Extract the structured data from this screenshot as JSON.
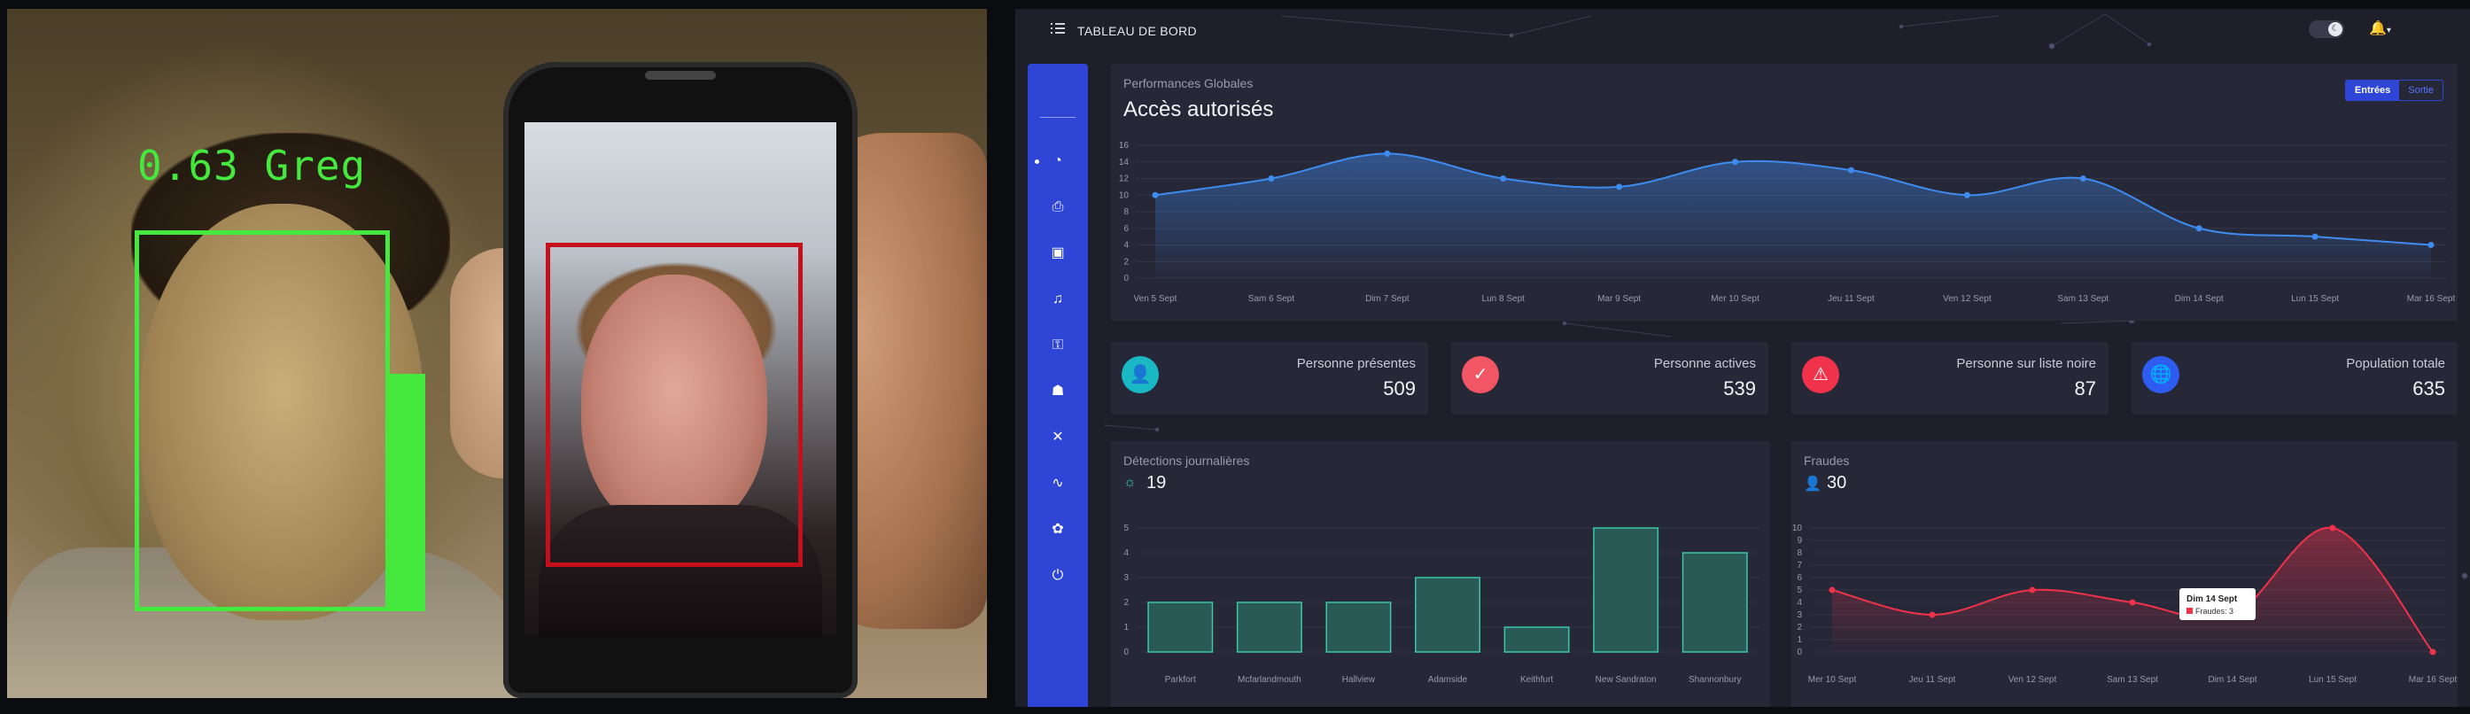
{
  "camera": {
    "overlay_label": "0.63 Greg"
  },
  "topbar": {
    "title": "TABLEAU DE BORD",
    "menu_icon": "list-icon",
    "theme_icon": "moon-icon",
    "notif_icon": "bell-icon"
  },
  "sidebar": {
    "items": [
      "dashboard-pie-icon",
      "camera-icon",
      "id-card-icon",
      "bell-icon",
      "key-icon",
      "users-icon",
      "tools-icon",
      "pulse-icon",
      "puzzle-icon",
      "power-icon"
    ]
  },
  "main_card": {
    "subtitle": "Performances Globales",
    "title": "Accès autorisés",
    "toggle": {
      "active": "Entrées",
      "inactive": "Sortie"
    }
  },
  "stats": [
    {
      "label": "Personne présentes",
      "value": "509",
      "icon": "user-icon",
      "color": "#1ab7c4"
    },
    {
      "label": "Personne actives",
      "value": "539",
      "icon": "check-icon",
      "color": "#f25563"
    },
    {
      "label": "Personne sur liste noire",
      "value": "87",
      "icon": "alert-icon",
      "color": "#f0324a"
    },
    {
      "label": "Population totale",
      "value": "635",
      "icon": "globe-icon",
      "color": "#2e5bf0"
    }
  ],
  "detections": {
    "subtitle": "Détections journalières",
    "count": "19"
  },
  "frauds": {
    "subtitle": "Fraudes",
    "count": "30",
    "tooltip_title": "Dim 14 Sept",
    "tooltip_line": "Fraudes: 3"
  },
  "chart_data": [
    {
      "type": "area",
      "categories": [
        "Ven 5 Sept",
        "Sam 6 Sept",
        "Dim 7 Sept",
        "Lun 8 Sept",
        "Mar 9 Sept",
        "Mer 10 Sept",
        "Jeu 11 Sept",
        "Ven 12 Sept",
        "Sam 13 Sept",
        "Dim 14 Sept",
        "Lun 15 Sept",
        "Mar 16 Sept"
      ],
      "values": [
        10,
        12,
        15,
        12,
        11,
        14,
        13,
        10,
        12,
        6,
        5,
        4
      ],
      "yticks": [
        0,
        2,
        4,
        6,
        8,
        10,
        12,
        14,
        16
      ],
      "ylim": [
        0,
        16
      ],
      "color": "#3f8cf0"
    },
    {
      "type": "bar",
      "categories": [
        "Parkfort",
        "Mcfarlandmouth",
        "Hallview",
        "Adamside",
        "Keithfurt",
        "New Sandraton",
        "Shannonbury"
      ],
      "values": [
        2,
        2,
        2,
        3,
        1,
        5,
        4
      ],
      "yticks": [
        0,
        1,
        2,
        3,
        4,
        5
      ],
      "ylim": [
        0,
        5
      ],
      "color": "#3bc8a8"
    },
    {
      "type": "line",
      "categories": [
        "Mer 10 Sept",
        "Jeu 11 Sept",
        "Ven 12 Sept",
        "Sam 13 Sept",
        "Dim 14 Sept",
        "Lun 15 Sept",
        "Mar 16 Sept"
      ],
      "values": [
        5,
        3,
        5,
        4,
        3,
        10,
        0
      ],
      "yticks": [
        0,
        1,
        2,
        3,
        4,
        5,
        6,
        7,
        8,
        9,
        10
      ],
      "ylim": [
        0,
        10
      ],
      "color": "#f0324a"
    }
  ]
}
